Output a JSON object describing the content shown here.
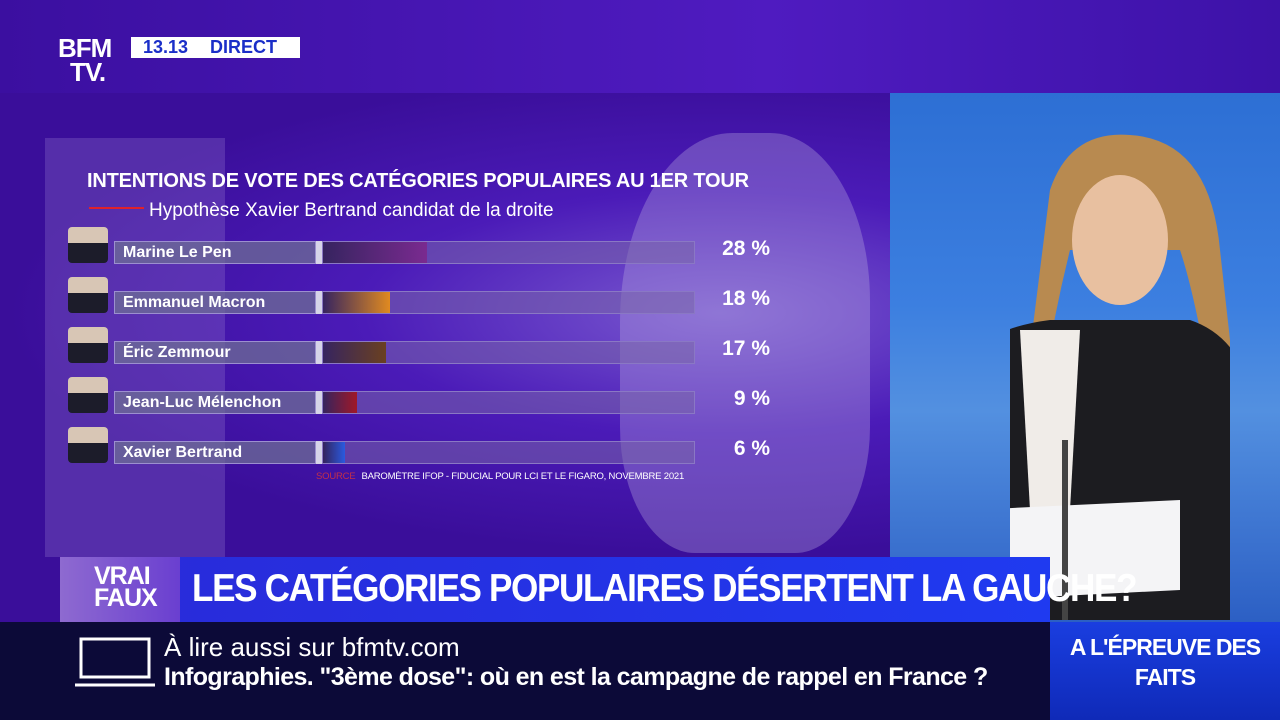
{
  "header": {
    "logo": "BFM TV.",
    "logo_line1": "BFM",
    "logo_line2": "TV.",
    "time": "13.13",
    "live_label": "DIRECT"
  },
  "chart_data": {
    "type": "bar",
    "orientation": "horizontal",
    "title": "INTENTIONS DE VOTE DES CATÉGORIES POPULAIRES AU 1ER TOUR",
    "subtitle": "Hypothèse Xavier Bertrand candidat de la droite",
    "categories": [
      "Marine Le Pen",
      "Emmanuel Macron",
      "Éric Zemmour",
      "Jean-Luc Mélenchon",
      "Xavier Bertrand"
    ],
    "values": [
      28,
      18,
      17,
      9,
      6
    ],
    "value_labels": [
      "28 %",
      "18 %",
      "17 %",
      "9 %",
      "6 %"
    ],
    "colors": [
      "#7a2a90",
      "#e08a20",
      "#6a4020",
      "#a01828",
      "#2a5ae0"
    ],
    "xlim": [
      0,
      100
    ],
    "source_label": "SOURCE",
    "source": "BAROMÈTRE IFOP - FIDUCIAL POUR LCI ET LE FIGARO, NOVEMBRE 2021"
  },
  "banner": {
    "logo": "VRAI FAUX",
    "logo_line1": "VRAI",
    "logo_line2": "FAUX",
    "headline": "LES CATÉGORIES POPULAIRES DÉSERTENT LA GAUCHE?"
  },
  "ticker": {
    "read_more": "À lire aussi sur bfmtv.com",
    "article": "Infographies. \"3ème dose\": où en est la campagne de rappel en France ?"
  },
  "corner": {
    "line1": "A L'ÉPREUVE DES",
    "line2": "FAITS"
  }
}
